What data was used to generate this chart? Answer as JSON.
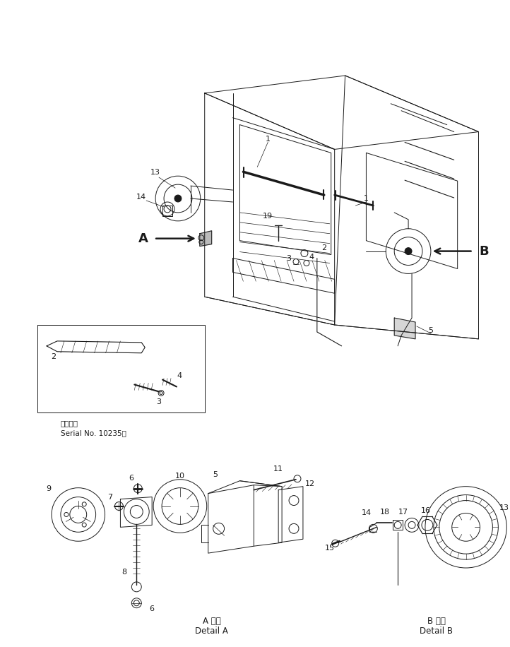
{
  "bg_color": "#ffffff",
  "fig_width": 7.22,
  "fig_height": 9.16,
  "dpi": 100,
  "line_color": "#1a1a1a",
  "serial_line1": "適用号機",
  "serial_line2": "Serial No. 10235～",
  "detail_a_jp": "A 詳細",
  "detail_a_en": "Detail A",
  "detail_b_jp": "B 詳細",
  "detail_b_en": "Detail B"
}
